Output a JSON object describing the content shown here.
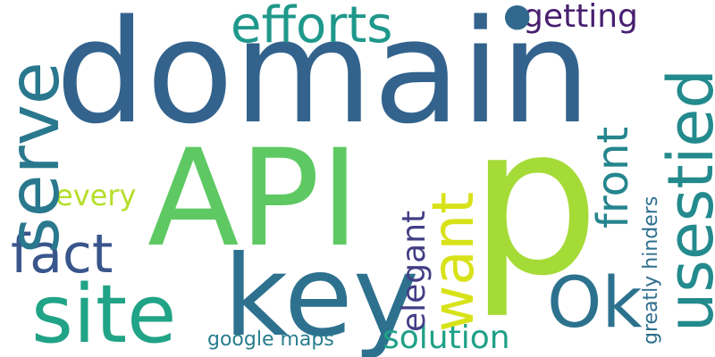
{
  "words": {
    "domain": {
      "text": "domain",
      "color": "#33638d"
    },
    "api": {
      "text": "API",
      "color": "#5ec962"
    },
    "p": {
      "text": "p",
      "color": "#a5db36"
    },
    "key": {
      "text": "key",
      "color": "#2d718e"
    },
    "site": {
      "text": "site",
      "color": "#20a386"
    },
    "fact": {
      "text": "fact",
      "color": "#39568c"
    },
    "serve": {
      "text": "serve",
      "color": "#2a788e"
    },
    "efforts": {
      "text": "efforts",
      "color": "#1f988b"
    },
    "usestied": {
      "text": "usestied",
      "color": "#238a8d"
    },
    "want": {
      "text": "want",
      "color": "#d8e219"
    },
    "front": {
      "text": "front",
      "color": "#25858e"
    },
    "ok": {
      "text": "Ok",
      "color": "#2c728e"
    },
    "elegant": {
      "text": "elegant",
      "color": "#433e85"
    },
    "solution": {
      "text": "solution",
      "color": "#1fa187"
    },
    "getting": {
      "text": "getting",
      "color": "#481f70"
    },
    "every": {
      "text": "every",
      "color": "#b5de2b"
    },
    "gmaps": {
      "text": "google maps",
      "color": "#287d8e"
    },
    "greatly": {
      "text": "greatly hinders",
      "color": "#2e6f8e"
    },
    "dot": {
      "text": "●",
      "color": "#31688e"
    }
  }
}
